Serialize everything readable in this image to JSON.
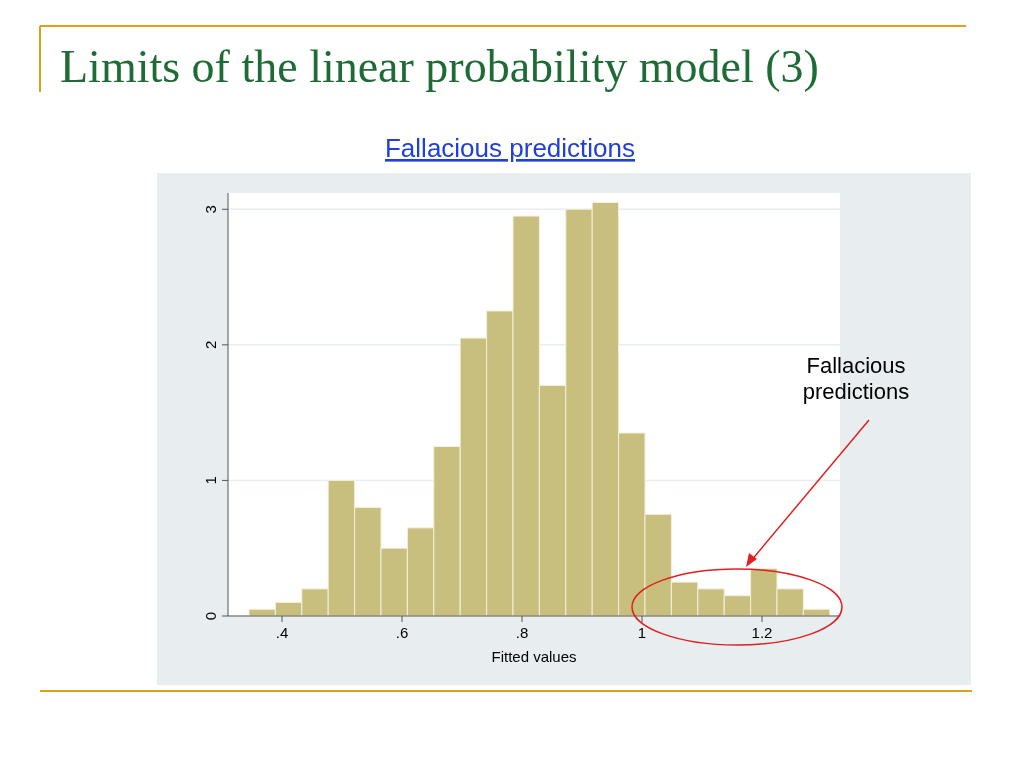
{
  "chart_data": {
    "type": "histogram",
    "title": "Limits of the linear probability model (3)",
    "subtitle": "Fallacious predictions",
    "xlabel": "Fitted values",
    "bins": [
      0.345,
      0.389,
      0.433,
      0.477,
      0.521,
      0.565,
      0.609,
      0.653,
      0.697,
      0.741,
      0.785,
      0.829,
      0.873,
      0.917,
      0.961,
      1.005,
      1.049,
      1.093,
      1.137,
      1.181,
      1.225,
      1.269,
      1.313
    ],
    "values": [
      0.05,
      0.1,
      0.2,
      1.0,
      0.8,
      0.5,
      0.65,
      1.25,
      2.05,
      2.25,
      2.95,
      1.7,
      3.0,
      3.05,
      1.35,
      0.75,
      0.25,
      0.2,
      0.15,
      0.35,
      0.2,
      0.05
    ],
    "color": "#c8bf7e",
    "xlim": [
      0.31,
      1.33
    ],
    "xticks": [
      {
        "value": 0.4,
        "label": ".4"
      },
      {
        "value": 0.6,
        "label": ".6"
      },
      {
        "value": 0.8,
        "label": ".8"
      },
      1,
      1.2
    ],
    "ylim": [
      0,
      3.12
    ],
    "yticks": [
      0,
      1,
      2,
      3
    ],
    "grid": "y",
    "annotations": [
      "Fallacious\npredictions"
    ]
  }
}
